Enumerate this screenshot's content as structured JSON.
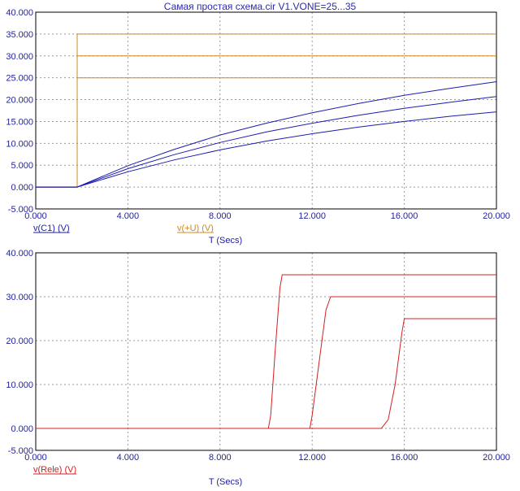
{
  "title": "Самая простая схема.cir V1.VONE=25...35",
  "colors": {
    "axis_text": "#1f1f9e",
    "grid": "#9a9a9a",
    "frame": "#000000",
    "blue": "#1c1cb0",
    "orange": "#d08a20",
    "red": "#d42020"
  },
  "chart_data": [
    {
      "type": "line",
      "xlim": [
        0,
        20
      ],
      "ylim": [
        -5,
        40
      ],
      "x_ticks": [
        "0.000",
        "4.000",
        "8.000",
        "12.000",
        "16.000",
        "20.000"
      ],
      "y_ticks": [
        "-5.000",
        "0.000",
        "5.000",
        "10.000",
        "15.000",
        "20.000",
        "25.000",
        "30.000",
        "35.000",
        "40.000"
      ],
      "xlabel": "T (Secs)",
      "legend": [
        {
          "label": "v(C1) (V)",
          "color": "#1c1cb0"
        },
        {
          "label": "v(+U) (V)",
          "color": "#d08a20"
        }
      ],
      "series": [
        {
          "name": "v(+U) (V)",
          "color": "#d08a20",
          "x": [
            0,
            1.8,
            1.8,
            20
          ],
          "y": [
            0,
            0,
            35,
            35
          ]
        },
        {
          "name": "v(+U) (V)",
          "color": "#d08a20",
          "x": [
            0,
            1.8,
            1.8,
            20
          ],
          "y": [
            0,
            0,
            30,
            30
          ]
        },
        {
          "name": "v(+U) (V)",
          "color": "#d08a20",
          "x": [
            0,
            1.8,
            1.8,
            20
          ],
          "y": [
            0,
            0,
            25,
            25
          ]
        },
        {
          "name": "v(C1) (V)",
          "color": "#1c1cb0",
          "x": [
            0,
            1.8,
            4,
            6,
            8,
            10,
            12,
            14,
            16,
            18,
            20
          ],
          "y": [
            0,
            0,
            4.9,
            8.6,
            11.9,
            14.6,
            17.0,
            19.1,
            21.0,
            22.6,
            24.1
          ]
        },
        {
          "name": "v(C1) (V)",
          "color": "#1c1cb0",
          "x": [
            0,
            1.8,
            4,
            6,
            8,
            10,
            12,
            14,
            16,
            18,
            20
          ],
          "y": [
            0,
            0,
            4.2,
            7.4,
            10.2,
            12.6,
            14.6,
            16.4,
            18.0,
            19.4,
            20.7
          ]
        },
        {
          "name": "v(C1) (V)",
          "color": "#1c1cb0",
          "x": [
            0,
            1.8,
            4,
            6,
            8,
            10,
            12,
            14,
            16,
            18,
            20
          ],
          "y": [
            0,
            0,
            3.5,
            6.2,
            8.5,
            10.5,
            12.2,
            13.7,
            15.0,
            16.2,
            17.2
          ]
        }
      ]
    },
    {
      "type": "line",
      "xlim": [
        0,
        20
      ],
      "ylim": [
        -5,
        40
      ],
      "x_ticks": [
        "0.000",
        "4.000",
        "8.000",
        "12.000",
        "16.000",
        "20.000"
      ],
      "y_ticks": [
        "-5.000",
        "0.000",
        "10.000",
        "20.000",
        "30.000",
        "40.000"
      ],
      "xlabel": "T (Secs)",
      "legend": [
        {
          "label": "v(Rele) (V)",
          "color": "#d42020"
        }
      ],
      "series": [
        {
          "name": "v(Rele) (V)",
          "color": "#d42020",
          "x": [
            0,
            10.1,
            10.2,
            10.4,
            10.6,
            10.7,
            20
          ],
          "y": [
            0,
            0,
            3,
            18,
            32,
            35,
            35
          ]
        },
        {
          "name": "v(Rele) (V)",
          "color": "#d42020",
          "x": [
            0,
            11.9,
            12.0,
            12.3,
            12.6,
            12.8,
            20
          ],
          "y": [
            0,
            0,
            3,
            15,
            27,
            30,
            30
          ]
        },
        {
          "name": "v(Rele) (V)",
          "color": "#d42020",
          "x": [
            0,
            15.0,
            15.3,
            15.6,
            15.9,
            16.0,
            20
          ],
          "y": [
            0,
            0,
            2,
            10,
            22,
            25,
            25
          ]
        }
      ]
    }
  ]
}
